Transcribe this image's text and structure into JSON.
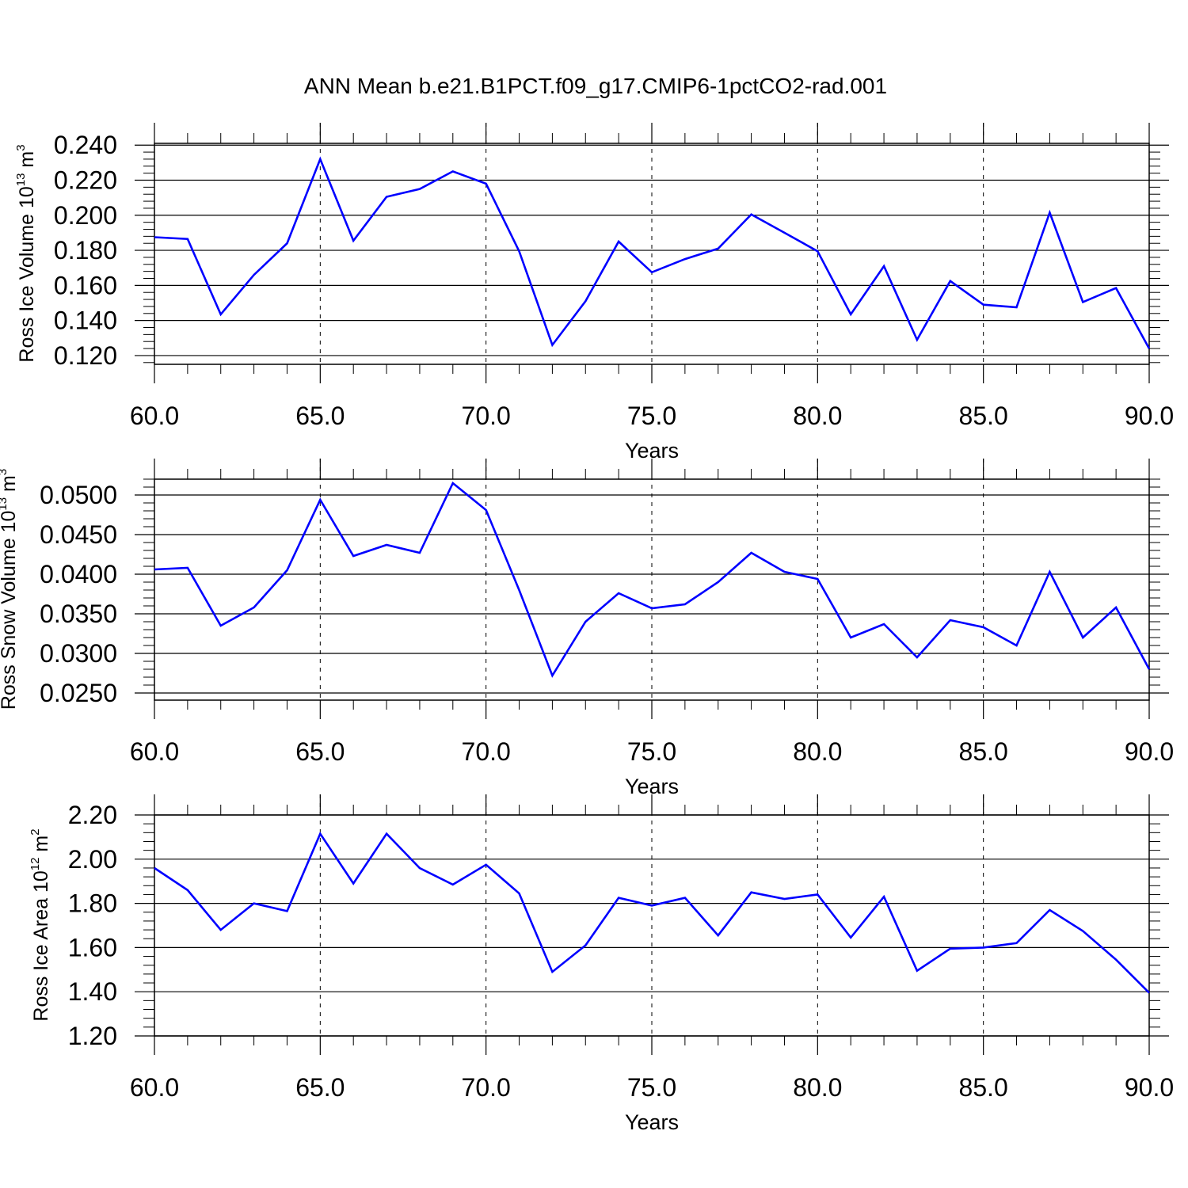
{
  "title": "ANN Mean b.e21.B1PCT.f09_g17.CMIP6-1pctCO2-rad.001",
  "colors": {
    "series": "#0000ff",
    "axes": "#000000",
    "grid": "#000000"
  },
  "chart_data": [
    {
      "type": "line",
      "ylabel_main": "Ross Ice Volume 10",
      "ylabel_exp": "13",
      "ylabel_unit": " m",
      "ylabel_unit_exp": "3",
      "xlabel": "Years",
      "xlim": [
        60,
        90
      ],
      "ylim": [
        0.115,
        0.241
      ],
      "yticks": [
        0.12,
        0.14,
        0.16,
        0.18,
        0.2,
        0.22,
        0.24
      ],
      "ytick_labels": [
        "0.120",
        "0.140",
        "0.160",
        "0.180",
        "0.200",
        "0.220",
        "0.240"
      ],
      "xticks": [
        60,
        65,
        70,
        75,
        80,
        85,
        90
      ],
      "xtick_labels": [
        "60.0",
        "65.0",
        "70.0",
        "75.0",
        "80.0",
        "85.0",
        "90.0"
      ],
      "grid_x": [
        65,
        70,
        75,
        80,
        85
      ],
      "x": [
        60,
        61,
        62,
        63,
        64,
        65,
        66,
        67,
        68,
        69,
        70,
        71,
        72,
        73,
        74,
        75,
        76,
        77,
        78,
        79,
        80,
        81,
        82,
        83,
        84,
        85,
        86,
        87,
        88,
        89,
        90
      ],
      "series": [
        {
          "values": [
            0.1875,
            0.1865,
            0.1435,
            0.166,
            0.184,
            0.232,
            0.1855,
            0.2105,
            0.215,
            0.225,
            0.218,
            0.1795,
            0.126,
            0.151,
            0.185,
            0.1675,
            0.175,
            0.181,
            0.2005,
            0.19,
            0.1795,
            0.1435,
            0.171,
            0.129,
            0.1625,
            0.149,
            0.1475,
            0.2015,
            0.1505,
            0.1585,
            0.124
          ]
        }
      ]
    },
    {
      "type": "line",
      "ylabel_main": "Ross Snow Volume 10",
      "ylabel_exp": "13",
      "ylabel_unit": " m",
      "ylabel_unit_exp": "3",
      "xlabel": "Years",
      "xlim": [
        60,
        90
      ],
      "ylim": [
        0.0241,
        0.052
      ],
      "yticks": [
        0.025,
        0.03,
        0.035,
        0.04,
        0.045,
        0.05
      ],
      "ytick_labels": [
        "0.0250",
        "0.0300",
        "0.0350",
        "0.0400",
        "0.0450",
        "0.0500"
      ],
      "xticks": [
        60,
        65,
        70,
        75,
        80,
        85,
        90
      ],
      "xtick_labels": [
        "60.0",
        "65.0",
        "70.0",
        "75.0",
        "80.0",
        "85.0",
        "90.0"
      ],
      "grid_x": [
        65,
        70,
        75,
        80,
        85
      ],
      "x": [
        60,
        61,
        62,
        63,
        64,
        65,
        66,
        67,
        68,
        69,
        70,
        71,
        72,
        73,
        74,
        75,
        76,
        77,
        78,
        79,
        80,
        81,
        82,
        83,
        84,
        85,
        86,
        87,
        88,
        89,
        90
      ],
      "series": [
        {
          "values": [
            0.0406,
            0.0408,
            0.0335,
            0.0358,
            0.0405,
            0.0494,
            0.0423,
            0.0437,
            0.0427,
            0.0515,
            0.0481,
            0.038,
            0.0272,
            0.034,
            0.0376,
            0.0357,
            0.0362,
            0.039,
            0.0427,
            0.0403,
            0.0394,
            0.032,
            0.0337,
            0.0295,
            0.0342,
            0.0333,
            0.031,
            0.0403,
            0.032,
            0.0358,
            0.028
          ]
        }
      ]
    },
    {
      "type": "line",
      "ylabel_main": "Ross Ice Area 10",
      "ylabel_exp": "12",
      "ylabel_unit": " m",
      "ylabel_unit_exp": "2",
      "xlabel": "Years",
      "xlim": [
        60,
        90
      ],
      "ylim": [
        1.2,
        2.2
      ],
      "yticks": [
        1.2,
        1.4,
        1.6,
        1.8,
        2.0,
        2.2
      ],
      "ytick_labels": [
        "1.20",
        "1.40",
        "1.60",
        "1.80",
        "2.00",
        "2.20"
      ],
      "xticks": [
        60,
        65,
        70,
        75,
        80,
        85,
        90
      ],
      "xtick_labels": [
        "60.0",
        "65.0",
        "70.0",
        "75.0",
        "80.0",
        "85.0",
        "90.0"
      ],
      "grid_x": [
        65,
        70,
        75,
        80,
        85
      ],
      "x": [
        60,
        61,
        62,
        63,
        64,
        65,
        66,
        67,
        68,
        69,
        70,
        71,
        72,
        73,
        74,
        75,
        76,
        77,
        78,
        79,
        80,
        81,
        82,
        83,
        84,
        85,
        86,
        87,
        88,
        89,
        90
      ],
      "series": [
        {
          "values": [
            1.96,
            1.86,
            1.68,
            1.8,
            1.765,
            2.115,
            1.89,
            2.115,
            1.96,
            1.885,
            1.975,
            1.845,
            1.49,
            1.61,
            1.825,
            1.79,
            1.825,
            1.655,
            1.85,
            1.82,
            1.84,
            1.645,
            1.83,
            1.495,
            1.595,
            1.6,
            1.62,
            1.77,
            1.675,
            1.545,
            1.395
          ]
        }
      ]
    }
  ]
}
